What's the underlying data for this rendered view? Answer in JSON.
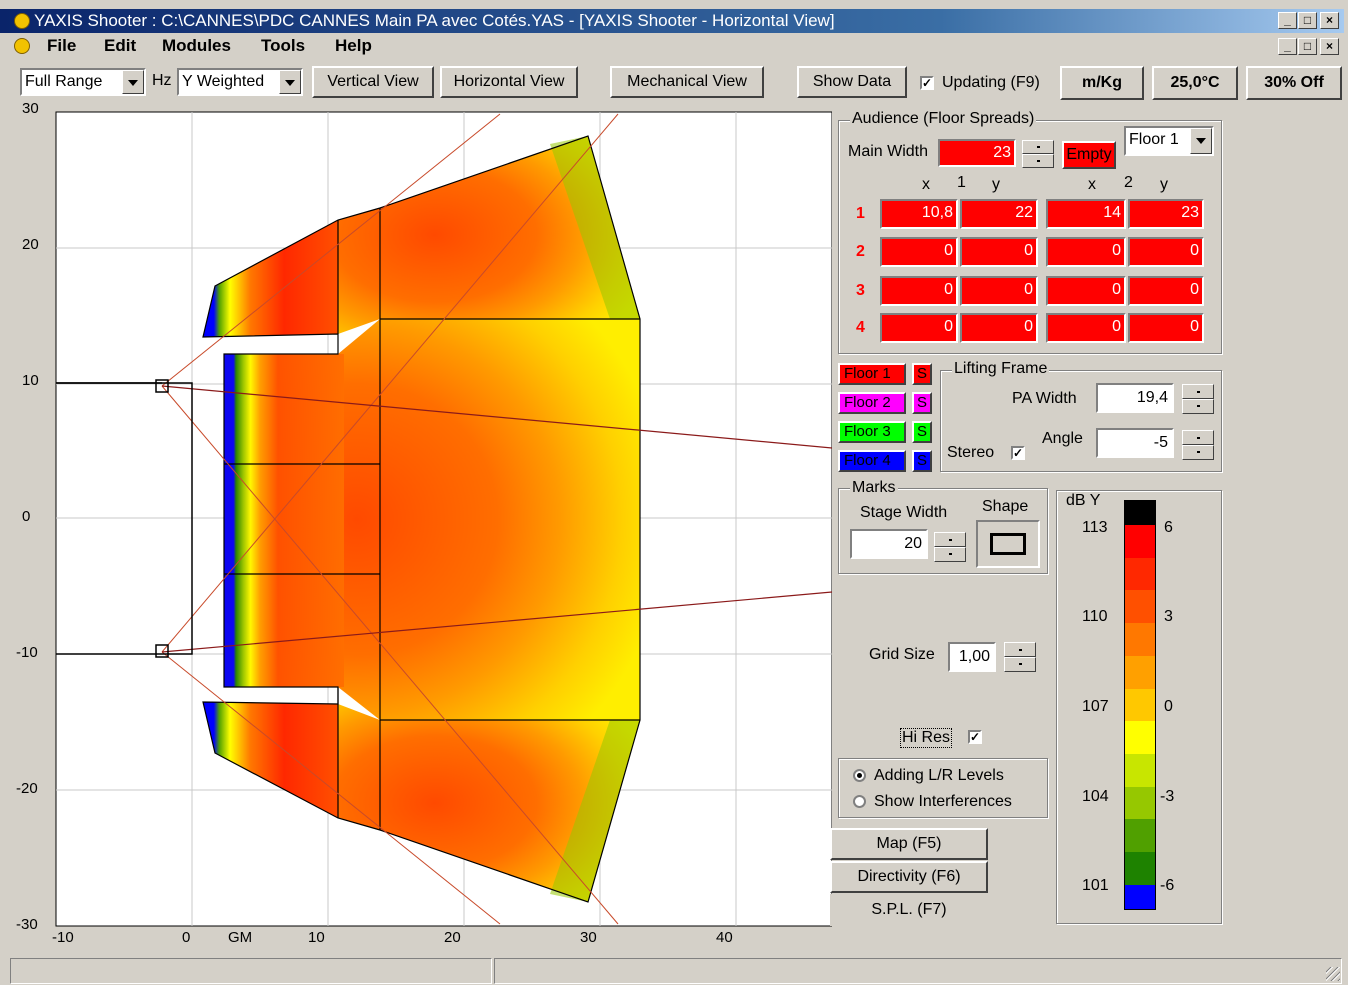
{
  "window": {
    "title": "YAXIS Shooter : C:\\CANNES\\PDC CANNES Main PA avec Cotés.YAS - [YAXIS Shooter - Horizontal View]",
    "min": "_",
    "max": "□",
    "close": "×",
    "restore": "🗗"
  },
  "menu": [
    "File",
    "Edit",
    "Modules",
    "Tools",
    "Help"
  ],
  "toolbar": {
    "range": "Full Range",
    "hz": "Hz",
    "weighting": "Y Weighted",
    "vertical_view": "Vertical View",
    "horizontal_view": "Horizontal View",
    "mechanical_view": "Mechanical View",
    "show_data": "Show Data",
    "updating": "Updating (F9)",
    "updating_checked": "✓",
    "unit": "m/Kg",
    "temperature": "25,0°C",
    "humidity": "30% Off"
  },
  "plot": {
    "y_ticks": [
      "30",
      "20",
      "10",
      "0",
      "-10",
      "-20",
      "-30"
    ],
    "x_ticks": [
      "-10",
      "0",
      "10",
      "20",
      "30",
      "40"
    ],
    "gm_label": "GM"
  },
  "audience": {
    "title": "Audience (Floor Spreads)",
    "main_width_label": "Main Width",
    "main_width": "23",
    "empty": "Empty",
    "floor_select": "Floor 1",
    "col_headers": [
      "x",
      "1",
      "y",
      "x",
      "2",
      "y"
    ],
    "rows": [
      {
        "n": "1",
        "x1": "10,8",
        "y1": "22",
        "x2": "14",
        "y2": "23"
      },
      {
        "n": "2",
        "x1": "0",
        "y1": "0",
        "x2": "0",
        "y2": "0"
      },
      {
        "n": "3",
        "x1": "0",
        "y1": "0",
        "x2": "0",
        "y2": "0"
      },
      {
        "n": "4",
        "x1": "0",
        "y1": "0",
        "x2": "0",
        "y2": "0"
      }
    ]
  },
  "floors": [
    {
      "label": "Floor 1",
      "s": "S",
      "color": "#ff0000"
    },
    {
      "label": "Floor 2",
      "s": "S",
      "color": "#ff00ff"
    },
    {
      "label": "Floor 3",
      "s": "S",
      "color": "#00ff00"
    },
    {
      "label": "Floor 4",
      "s": "S",
      "color": "#0000ff"
    }
  ],
  "lifting": {
    "title": "Lifting Frame",
    "pa_width_label": "PA Width",
    "pa_width": "19,4",
    "angle_label": "Angle",
    "angle": "-5",
    "stereo_label": "Stereo",
    "stereo_checked": "✓"
  },
  "marks": {
    "title": "Marks",
    "stage_width_label": "Stage Width",
    "stage_width": "20",
    "shape_label": "Shape"
  },
  "grid": {
    "label": "Grid Size",
    "value": "1,00"
  },
  "hires": {
    "label": "Hi Res",
    "checked": "✓"
  },
  "mode": {
    "adding": "Adding L/R Levels",
    "interf": "Show Interferences"
  },
  "tabs": {
    "map": "Map (F5)",
    "directivity": "Directivity (F6)",
    "spl": "S.P.L. (F7)"
  },
  "legend": {
    "title": "dB Y",
    "left": [
      "113",
      "110",
      "107",
      "104",
      "101"
    ],
    "right": [
      "6",
      "3",
      "0",
      "-3",
      "-6"
    ],
    "colors": [
      "#000000",
      "#ff0000",
      "#ff2800",
      "#ff5000",
      "#ff7800",
      "#ffa000",
      "#ffc800",
      "#ffff00",
      "#c8e600",
      "#96c800",
      "#50a000",
      "#1e8200",
      "#0000ff"
    ]
  }
}
